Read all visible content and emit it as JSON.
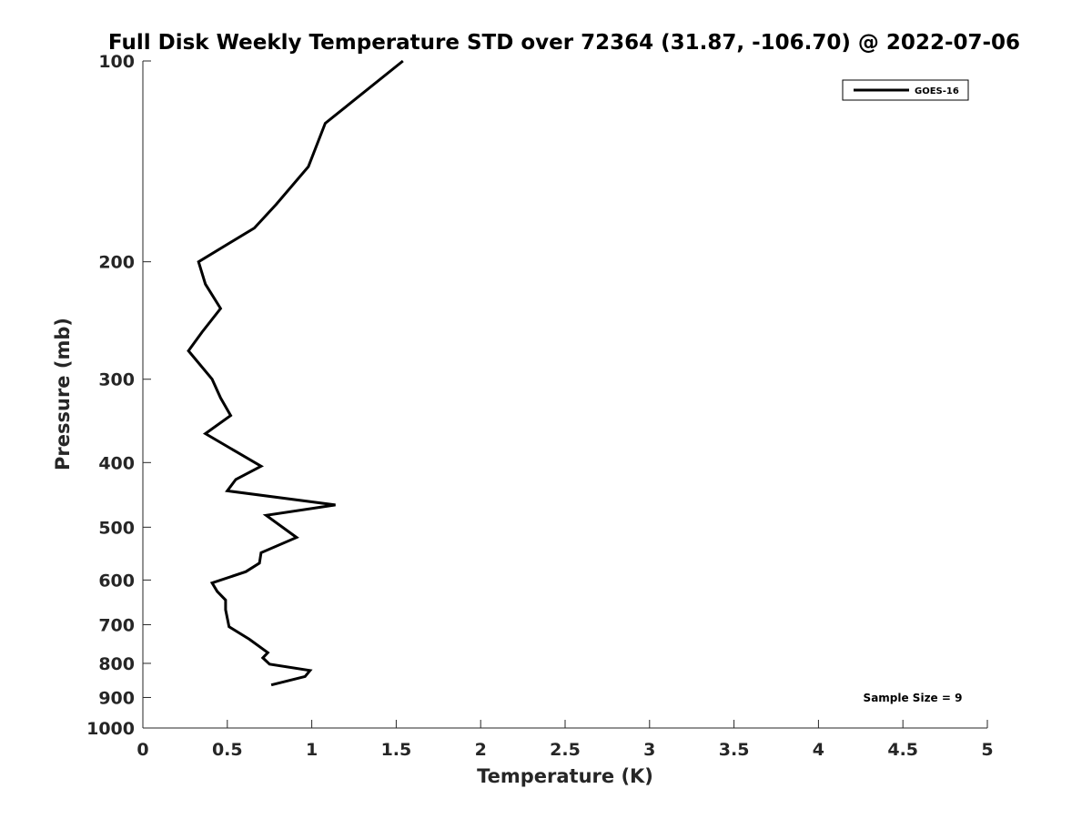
{
  "chart_data": {
    "type": "line",
    "title": "Full Disk Weekly Temperature STD over 72364 (31.87, -106.70) @ 2022-07-06",
    "xlabel": "Temperature (K)",
    "ylabel": "Pressure (mb)",
    "xlim": [
      0,
      5
    ],
    "ylim": [
      100,
      1000
    ],
    "y_scale": "log",
    "y_reversed": true,
    "xticks": [
      0,
      0.5,
      1,
      1.5,
      2,
      2.5,
      3,
      3.5,
      4,
      4.5,
      5
    ],
    "xtick_labels": [
      "0",
      "0.5",
      "1",
      "1.5",
      "2",
      "2.5",
      "3",
      "3.5",
      "4",
      "4.5",
      "5"
    ],
    "yticks": [
      100,
      200,
      300,
      400,
      500,
      600,
      700,
      800,
      900,
      1000
    ],
    "ytick_labels": [
      "100",
      "200",
      "300",
      "400",
      "500",
      "600",
      "700",
      "800",
      "900",
      "1000"
    ],
    "grid": false,
    "legend_position": "top-right",
    "annotation": "Sample Size = 9",
    "series": [
      {
        "name": "GOES-16",
        "color": "#000000",
        "points": [
          [
            1.54,
            100
          ],
          [
            1.08,
            124
          ],
          [
            0.98,
            144
          ],
          [
            0.79,
            164
          ],
          [
            0.66,
            178
          ],
          [
            0.33,
            200
          ],
          [
            0.37,
            216
          ],
          [
            0.46,
            235
          ],
          [
            0.35,
            255
          ],
          [
            0.27,
            272
          ],
          [
            0.41,
            300
          ],
          [
            0.46,
            320
          ],
          [
            0.52,
            340
          ],
          [
            0.37,
            362
          ],
          [
            0.55,
            385
          ],
          [
            0.7,
            405
          ],
          [
            0.55,
            424
          ],
          [
            0.5,
            441
          ],
          [
            1.14,
            463
          ],
          [
            0.73,
            480
          ],
          [
            0.91,
            518
          ],
          [
            0.7,
            546
          ],
          [
            0.69,
            566
          ],
          [
            0.61,
            583
          ],
          [
            0.41,
            606
          ],
          [
            0.44,
            624
          ],
          [
            0.49,
            643
          ],
          [
            0.49,
            665
          ],
          [
            0.51,
            705
          ],
          [
            0.63,
            736
          ],
          [
            0.74,
            771
          ],
          [
            0.71,
            785
          ],
          [
            0.75,
            802
          ],
          [
            0.99,
            820
          ],
          [
            0.96,
            837
          ],
          [
            0.76,
            862
          ]
        ]
      }
    ]
  }
}
